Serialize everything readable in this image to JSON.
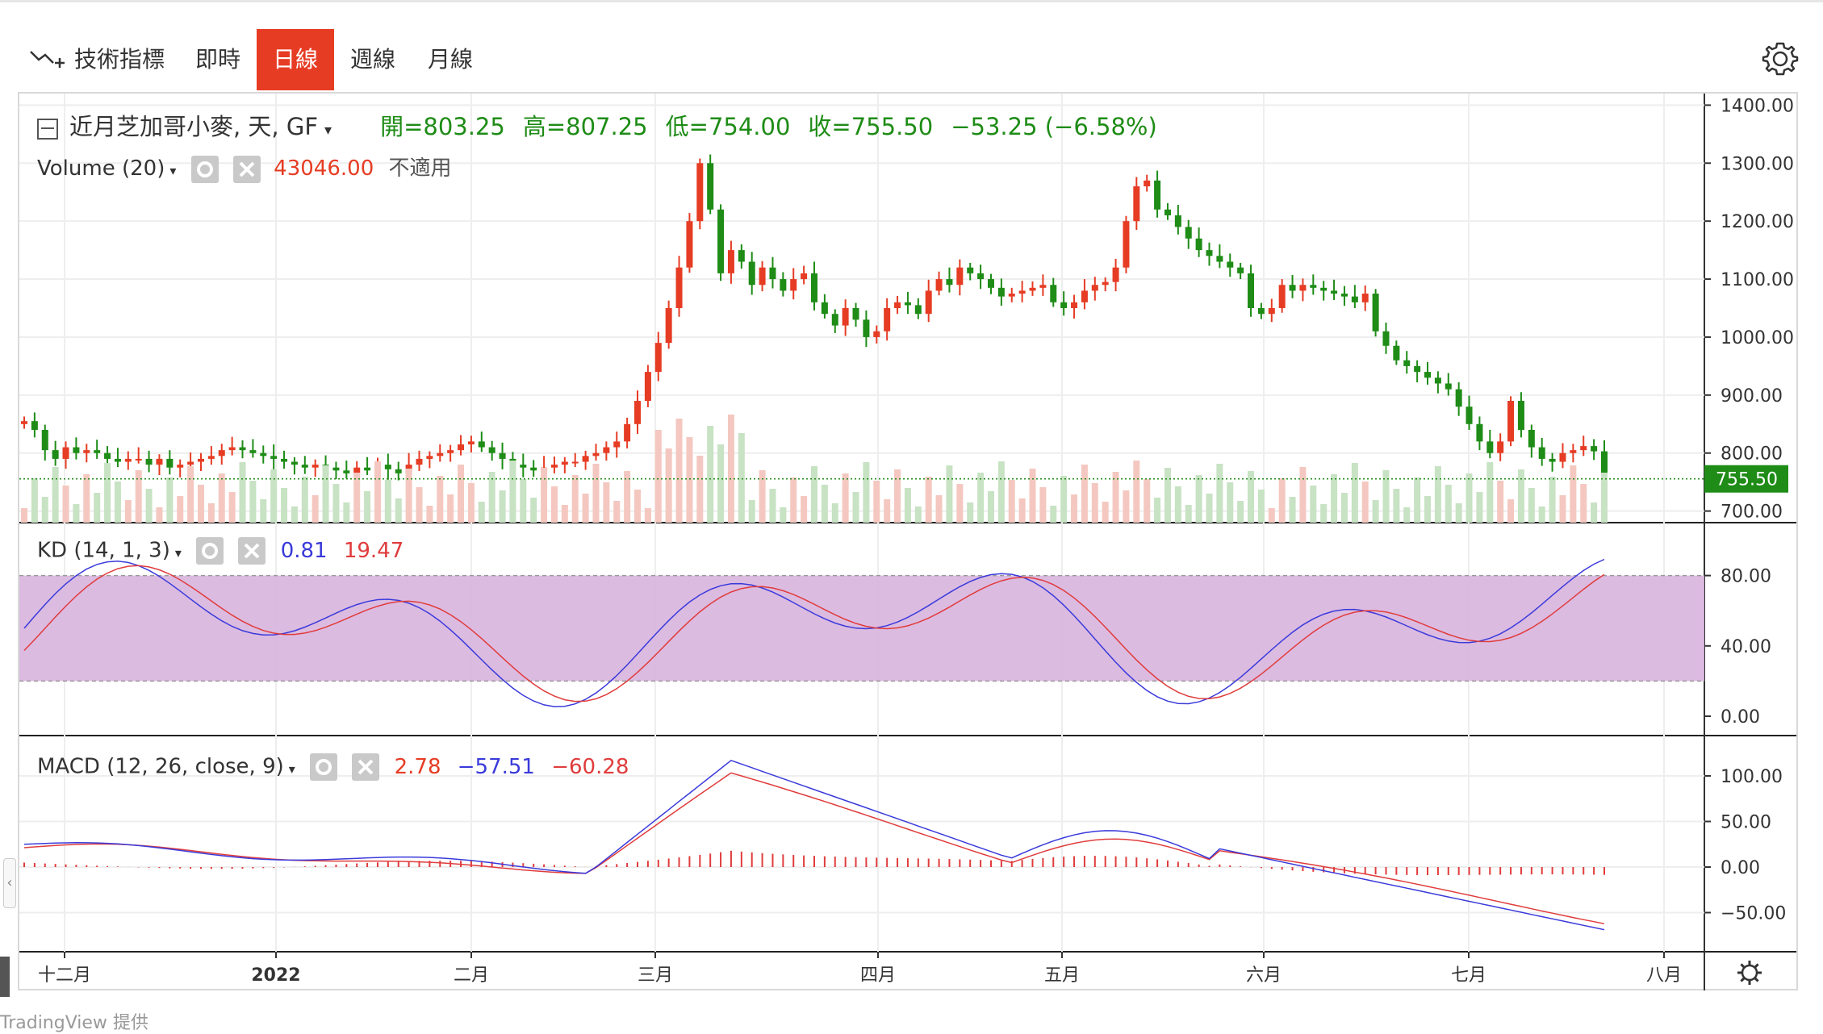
{
  "toolbar": {
    "indicators_label": "技術指標",
    "tabs": [
      {
        "label": "即時",
        "active": false
      },
      {
        "label": "日線",
        "active": true
      },
      {
        "label": "週線",
        "active": false
      },
      {
        "label": "月線",
        "active": false
      }
    ],
    "settings_icon": "gear-icon"
  },
  "symbol": {
    "name": "近月芝加哥小麥, 天, GF",
    "open": "開=803.25",
    "high": "高=807.25",
    "low": "低=754.00",
    "close": "收=755.50",
    "change": "−53.25 (−6.58%)"
  },
  "volume": {
    "label": "Volume (20)",
    "value": "43046.00",
    "na": "不適用"
  },
  "kd": {
    "label": "KD (14, 1, 3)",
    "k": "0.81",
    "d": "19.47"
  },
  "macd": {
    "label": "MACD (12, 26, close, 9)",
    "hist": "2.78",
    "macd": "−57.51",
    "signal": "−60.28"
  },
  "price_axis": [
    "1400.00",
    "1300.00",
    "1200.00",
    "1100.00",
    "1000.00",
    "900.00",
    "800.00",
    "700.00"
  ],
  "last_price_tag": "755.50",
  "kd_axis": [
    "80.00",
    "40.00",
    "0.00"
  ],
  "macd_axis": [
    "100.00",
    "50.00",
    "0.00",
    "−50.00"
  ],
  "time_axis": [
    "十二月",
    "2022",
    "二月",
    "三月",
    "四月",
    "五月",
    "六月",
    "七月",
    "八月"
  ],
  "footer": "TradingView 提供",
  "colors": {
    "up": "#e63c24",
    "down": "#1e8c16",
    "kd_k": "#3a3adb",
    "kd_d": "#e03c3c",
    "band": "#d8b4de",
    "accent": "#e63c24"
  },
  "chart_data": {
    "type": "candlestick",
    "ylim": [
      680,
      1420
    ],
    "closes": [
      855,
      840,
      805,
      790,
      810,
      800,
      805,
      800,
      790,
      785,
      790,
      790,
      780,
      790,
      775,
      780,
      785,
      790,
      795,
      805,
      810,
      805,
      800,
      795,
      790,
      785,
      780,
      775,
      780,
      775,
      770,
      765,
      775,
      770,
      780,
      772,
      765,
      780,
      790,
      795,
      800,
      805,
      815,
      820,
      810,
      800,
      790,
      780,
      775,
      770,
      775,
      780,
      785,
      785,
      795,
      800,
      810,
      820,
      850,
      890,
      940,
      990,
      1050,
      1120,
      1200,
      1300,
      1220,
      1110,
      1150,
      1130,
      1090,
      1120,
      1100,
      1080,
      1100,
      1110,
      1060,
      1040,
      1020,
      1050,
      1030,
      1000,
      1010,
      1050,
      1060,
      1055,
      1040,
      1080,
      1100,
      1090,
      1120,
      1110,
      1100,
      1085,
      1070,
      1075,
      1080,
      1085,
      1090,
      1060,
      1050,
      1060,
      1080,
      1090,
      1095,
      1120,
      1200,
      1260,
      1270,
      1220,
      1210,
      1190,
      1170,
      1150,
      1140,
      1130,
      1120,
      1110,
      1050,
      1040,
      1050,
      1090,
      1080,
      1090,
      1085,
      1080,
      1075,
      1070,
      1060,
      1075,
      1010,
      985,
      960,
      950,
      940,
      930,
      920,
      910,
      880,
      850,
      820,
      800,
      820,
      890,
      840,
      810,
      790,
      785,
      800,
      805,
      812,
      803,
      755
    ],
    "volume_last": 43046,
    "kd_k_last": 0.81,
    "kd_d_last": 19.47,
    "macd_hist_last": 2.78,
    "macd_last": -57.51,
    "signal_last": -60.28
  }
}
